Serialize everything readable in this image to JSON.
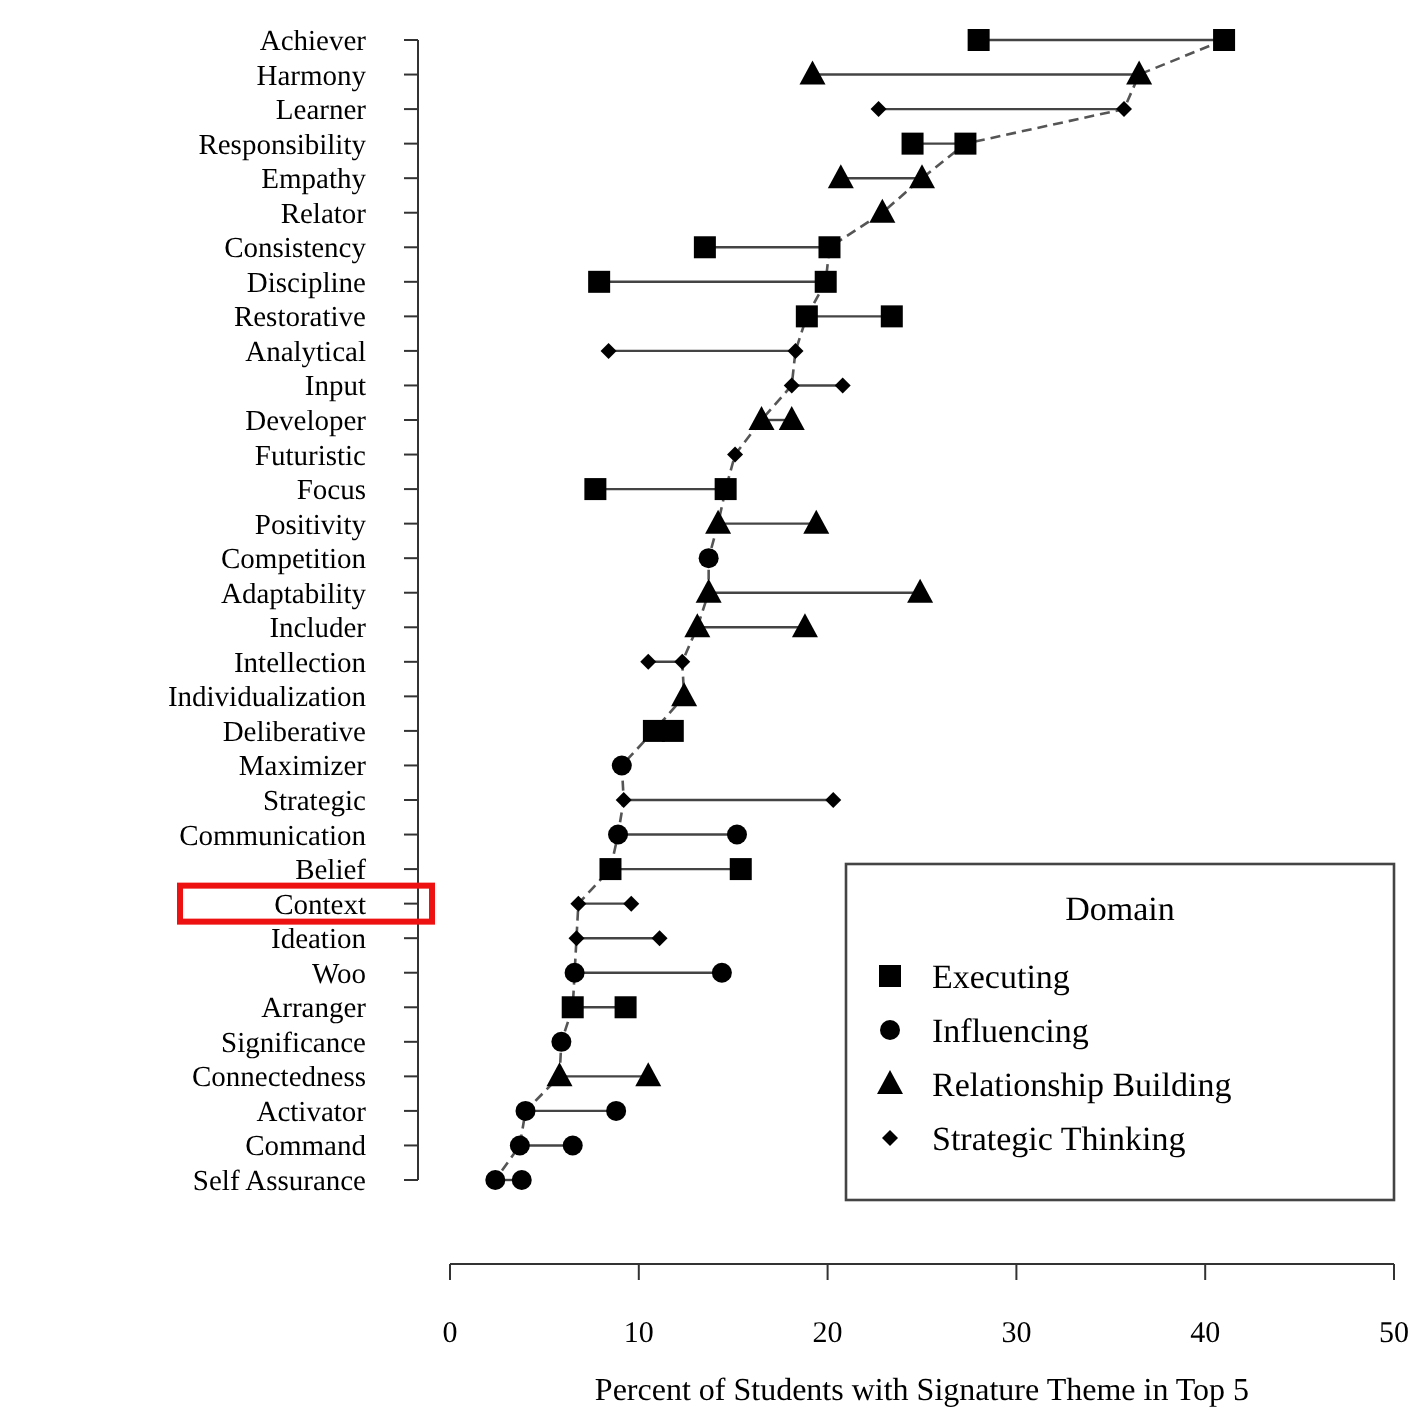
{
  "chart_data": {
    "type": "scatter",
    "orientation": "horizontal",
    "xlabel": "Percent of Students with Signature Theme in Top 5",
    "legend_title": "Domain",
    "legend": "bottom right",
    "grid": false,
    "categories": [
      "Achiever",
      "Harmony",
      "Learner",
      "Responsibility",
      "Empathy",
      "Relator",
      "Consistency",
      "Discipline",
      "Restorative",
      "Analytical",
      "Input",
      "Developer",
      "Futuristic",
      "Focus",
      "Positivity",
      "Competition",
      "Adaptability",
      "Includer",
      "Intellection",
      "Individualization",
      "Deliberative",
      "Maximizer",
      "Strategic",
      "Communication",
      "Belief",
      "Context",
      "Ideation",
      "Woo",
      "Arranger",
      "Significance",
      "Connectedness",
      "Activator",
      "Command",
      "Self Assurance"
    ],
    "xlim": [
      0,
      50
    ],
    "xticks": [
      0,
      10,
      20,
      30,
      40,
      50
    ],
    "series": [
      {
        "type": "line",
        "line_style": "dashed",
        "marker": "none",
        "color": "#555555",
        "values": [
          41.0,
          36.5,
          35.7,
          27.3,
          25.0,
          22.9,
          20.1,
          19.9,
          18.9,
          18.3,
          18.1,
          16.5,
          15.1,
          14.6,
          14.2,
          13.7,
          13.7,
          13.1,
          12.3,
          12.4,
          10.8,
          9.1,
          9.2,
          8.9,
          8.5,
          6.8,
          6.7,
          6.6,
          6.5,
          5.9,
          5.8,
          4.0,
          3.7,
          2.4
        ]
      },
      {
        "name": "Executing",
        "marker": "square",
        "color": "#000000",
        "values": [
          41.0,
          null,
          null,
          27.3,
          null,
          null,
          20.1,
          19.9,
          18.9,
          null,
          null,
          null,
          null,
          14.6,
          null,
          null,
          null,
          null,
          null,
          null,
          10.8,
          null,
          null,
          null,
          8.5,
          null,
          null,
          null,
          6.5,
          null,
          null,
          null,
          null,
          null
        ]
      },
      {
        "name": "Influencing",
        "marker": "circle",
        "color": "#000000",
        "values": [
          null,
          null,
          null,
          null,
          null,
          null,
          null,
          null,
          null,
          null,
          null,
          null,
          null,
          null,
          null,
          13.7,
          null,
          null,
          null,
          null,
          null,
          9.1,
          null,
          8.9,
          null,
          null,
          null,
          6.6,
          null,
          5.9,
          null,
          4.0,
          3.7,
          2.4
        ]
      },
      {
        "name": "Relationship Building",
        "marker": "triangle",
        "color": "#000000",
        "values": [
          null,
          36.5,
          null,
          null,
          25.0,
          22.9,
          null,
          null,
          null,
          null,
          null,
          16.5,
          null,
          null,
          14.2,
          null,
          13.7,
          13.1,
          null,
          12.4,
          null,
          null,
          null,
          null,
          null,
          null,
          null,
          null,
          null,
          null,
          5.8,
          null,
          null,
          null
        ]
      },
      {
        "name": "Strategic Thinking",
        "marker": "diamond",
        "color": "#000000",
        "values": [
          null,
          null,
          35.7,
          null,
          null,
          null,
          null,
          null,
          null,
          18.3,
          18.1,
          null,
          15.1,
          null,
          null,
          null,
          null,
          null,
          12.3,
          null,
          null,
          null,
          9.2,
          null,
          null,
          6.8,
          6.7,
          null,
          null,
          null,
          null,
          null,
          null,
          null
        ]
      },
      {
        "marker": "square",
        "color": "#000000",
        "values": [
          28.0,
          null,
          null,
          24.5,
          null,
          null,
          13.5,
          7.9,
          23.4,
          null,
          null,
          null,
          null,
          7.7,
          null,
          null,
          null,
          null,
          null,
          null,
          11.8,
          null,
          null,
          null,
          15.4,
          null,
          null,
          null,
          9.3,
          null,
          null,
          null,
          null,
          null
        ]
      },
      {
        "marker": "circle",
        "color": "#000000",
        "values": [
          null,
          null,
          null,
          null,
          null,
          null,
          null,
          null,
          null,
          null,
          null,
          null,
          null,
          null,
          null,
          null,
          null,
          null,
          null,
          null,
          null,
          null,
          null,
          15.2,
          null,
          null,
          null,
          14.4,
          null,
          null,
          null,
          8.8,
          6.5,
          3.8
        ]
      },
      {
        "marker": "triangle",
        "color": "#000000",
        "values": [
          null,
          19.2,
          null,
          null,
          20.7,
          null,
          null,
          null,
          null,
          null,
          null,
          18.1,
          null,
          null,
          19.4,
          null,
          24.9,
          18.8,
          null,
          null,
          null,
          null,
          null,
          null,
          null,
          null,
          null,
          null,
          null,
          null,
          10.5,
          null,
          null,
          null
        ]
      },
      {
        "marker": "diamond",
        "color": "#000000",
        "values": [
          null,
          null,
          22.7,
          null,
          null,
          null,
          null,
          null,
          null,
          8.4,
          20.8,
          null,
          null,
          null,
          null,
          null,
          null,
          null,
          10.5,
          null,
          null,
          null,
          20.3,
          null,
          null,
          9.6,
          11.1,
          null,
          null,
          null,
          null,
          null,
          null,
          null
        ]
      }
    ]
  }
}
